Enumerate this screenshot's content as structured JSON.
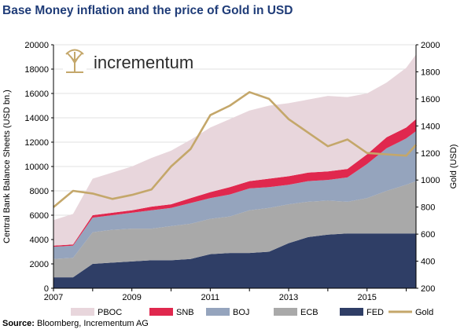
{
  "title": "Base Money inflation and the price of Gold in USD",
  "source_label": "Source:",
  "source_text": " Bloomberg, Incrementum AG",
  "logo_text": "incrementum",
  "colors": {
    "PBOC": "#e8d6dc",
    "SNB": "#e0284e",
    "BOJ": "#95a4bd",
    "ECB": "#a9a9a9",
    "FED": "#2f3e66",
    "Gold": "#c4a76a",
    "title": "#1f3c78",
    "logo_icon": "#c4a76a"
  },
  "chart_data": {
    "type": "area",
    "stacked": true,
    "x": [
      2007.0,
      2007.5,
      2008.0,
      2008.5,
      2009.0,
      2009.5,
      2010.0,
      2010.5,
      2011.0,
      2011.5,
      2012.0,
      2012.5,
      2013.0,
      2013.5,
      2014.0,
      2014.5,
      2015.0,
      2015.5,
      2016.0,
      2016.25
    ],
    "xlim": [
      2007,
      2016.25
    ],
    "x_ticks": [
      "2007",
      "2009",
      "2011",
      "2013",
      "2015"
    ],
    "ylabel": "Central Bank Balance Sheets (USD bn.)",
    "ylim": [
      0,
      20000
    ],
    "y_ticks": [
      "0",
      "2000",
      "4000",
      "6000",
      "8000",
      "10000",
      "12000",
      "14000",
      "16000",
      "18000",
      "20000"
    ],
    "y2label": "Gold (USD)",
    "y2lim": [
      200,
      2000
    ],
    "y2_ticks": [
      "200",
      "400",
      "600",
      "800",
      "1000",
      "1200",
      "1400",
      "1600",
      "1800",
      "2000"
    ],
    "legend_position": "bottom",
    "series": [
      {
        "name": "FED",
        "values": [
          900,
          900,
          2000,
          2100,
          2200,
          2300,
          2300,
          2400,
          2800,
          2900,
          2900,
          3000,
          3700,
          4200,
          4400,
          4500,
          4500,
          4500,
          4500,
          4500
        ]
      },
      {
        "name": "ECB",
        "values": [
          1500,
          1600,
          2600,
          2700,
          2700,
          2600,
          2800,
          2900,
          2900,
          3000,
          3500,
          3600,
          3200,
          2900,
          2800,
          2600,
          2900,
          3500,
          4000,
          4300
        ]
      },
      {
        "name": "BOJ",
        "values": [
          1000,
          1000,
          1200,
          1200,
          1300,
          1500,
          1500,
          1700,
          1700,
          1800,
          1800,
          1700,
          1600,
          1700,
          1700,
          2000,
          2800,
          3500,
          3800,
          4100
        ]
      },
      {
        "name": "SNB",
        "values": [
          100,
          100,
          200,
          200,
          200,
          300,
          300,
          400,
          500,
          600,
          600,
          700,
          700,
          700,
          700,
          700,
          800,
          900,
          900,
          1000
        ]
      },
      {
        "name": "PBOC",
        "values": [
          2100,
          2500,
          3000,
          3300,
          3600,
          4000,
          4400,
          4800,
          5300,
          5600,
          5800,
          6000,
          6000,
          6000,
          6200,
          5900,
          5000,
          4500,
          4900,
          5300
        ]
      },
      {
        "name": "Gold",
        "axis": "right",
        "values": [
          800,
          920,
          900,
          860,
          890,
          930,
          1100,
          1230,
          1480,
          1550,
          1650,
          1600,
          1450,
          1350,
          1250,
          1300,
          1200,
          1190,
          1180,
          1260
        ]
      }
    ]
  },
  "legend": [
    "PBOC",
    "SNB",
    "BOJ",
    "ECB",
    "FED",
    "Gold"
  ]
}
